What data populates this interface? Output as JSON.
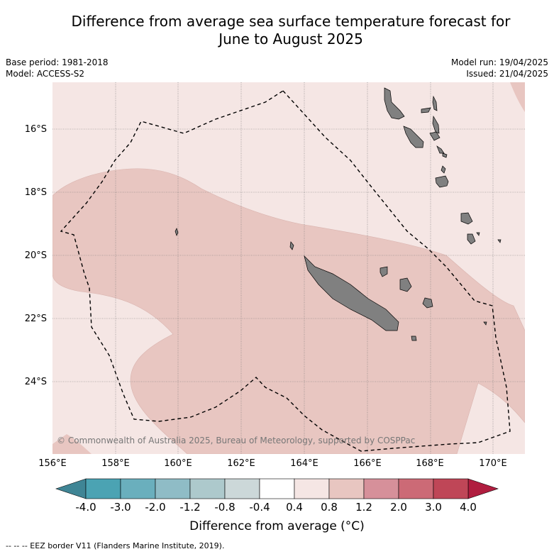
{
  "title_line1": "Difference from average sea surface temperature forecast for",
  "title_line2": "June to August 2025",
  "base_period": "Base period: 1981-2018",
  "model": "Model: ACCESS-S2",
  "model_run": "Model run: 19/04/2025",
  "issued": "Issued: 21/04/2025",
  "lat_labels": [
    "16°S",
    "18°S",
    "20°S",
    "22°S",
    "24°S"
  ],
  "lon_labels": [
    "156°E",
    "158°E",
    "160°E",
    "162°E",
    "164°E",
    "166°E",
    "168°E",
    "170°E"
  ],
  "copyright": "© Commonwealth of Australia 2025, Bureau of Meteorology, supported by COSPPac",
  "colorbar": {
    "ticks": [
      "-4.0",
      "-3.0",
      "-2.0",
      "-1.2",
      "-0.8",
      "-0.4",
      "0.4",
      "0.8",
      "1.2",
      "2.0",
      "3.0",
      "4.0"
    ],
    "colors": [
      "#4ba3b3",
      "#6aafbd",
      "#8fbcc6",
      "#adc9cc",
      "#ccd8d9",
      "#ffffff",
      "#f5e6e4",
      "#e8c6c1",
      "#d6909a",
      "#cc6a76",
      "#bf4657"
    ],
    "low_color": "#3f8595",
    "high_color": "#b01d3f",
    "label": "Difference from average (°C)"
  },
  "footnote": "--  --  -- EEZ border V11 (Flanders Marine Institute, 2019)."
}
